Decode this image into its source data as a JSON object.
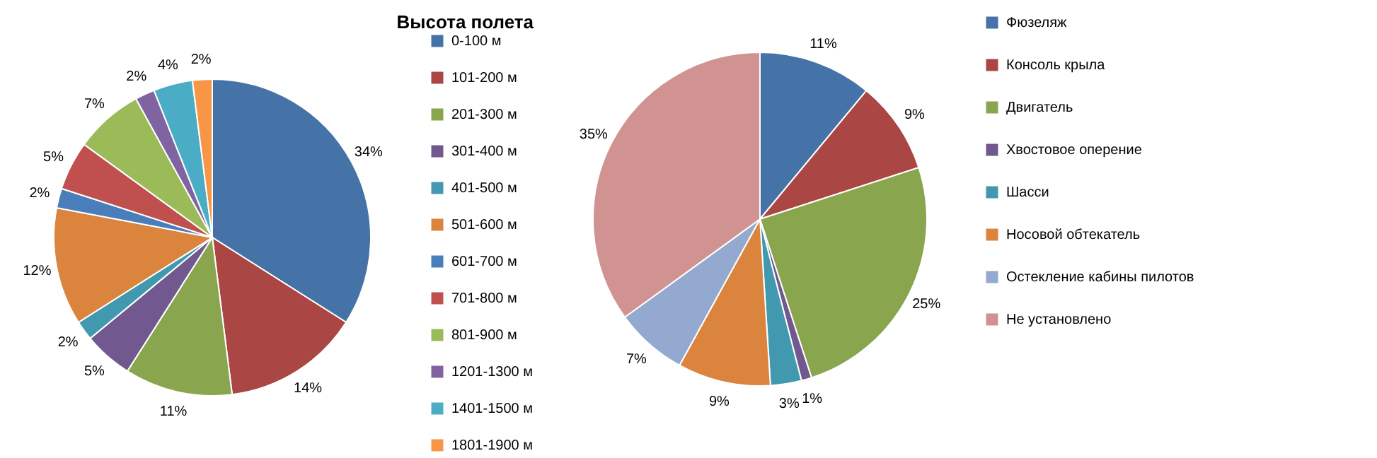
{
  "chart_data": [
    {
      "type": "pie",
      "title": "Высота полета",
      "legend": "right",
      "categories": [
        "0-100 м",
        "101-200 м",
        "201-300 м",
        "301-400 м",
        "401-500 м",
        "501-600 м",
        "601-700 м",
        "701-800 м",
        "801-900 м",
        "1201-1300 м",
        "1401-1500 м",
        "1801-1900 м"
      ],
      "values": [
        34,
        14,
        11,
        5,
        2,
        12,
        2,
        5,
        7,
        2,
        4,
        2
      ],
      "value_labels": [
        "34%",
        "14%",
        "11%",
        "5%",
        "2%",
        "12%",
        "2%",
        "5%",
        "7%",
        "2%",
        "4%",
        "2%"
      ],
      "colors": [
        "#4572a7",
        "#aa4643",
        "#89a54e",
        "#71588f",
        "#4198af",
        "#db843d",
        "#4a7ebb",
        "#c0504d",
        "#9bbb59",
        "#8064a2",
        "#4bacc6",
        "#f79646"
      ]
    },
    {
      "type": "pie",
      "legend": "right",
      "categories": [
        "Фюзеляж",
        "Консоль крыла",
        "Двигатель",
        "Хвостовое оперение",
        "Шасси",
        "Носовой обтекатель",
        "Остекление кабины пилотов",
        "Не установлено"
      ],
      "values": [
        11,
        9,
        25,
        1,
        3,
        9,
        7,
        35
      ],
      "value_labels": [
        "11%",
        "9%",
        "25%",
        "1%",
        "3%",
        "9%",
        "7%",
        "35%"
      ],
      "colors": [
        "#4572a7",
        "#aa4643",
        "#89a54e",
        "#71588f",
        "#4198af",
        "#db843d",
        "#93a9cf",
        "#d19392"
      ]
    }
  ]
}
